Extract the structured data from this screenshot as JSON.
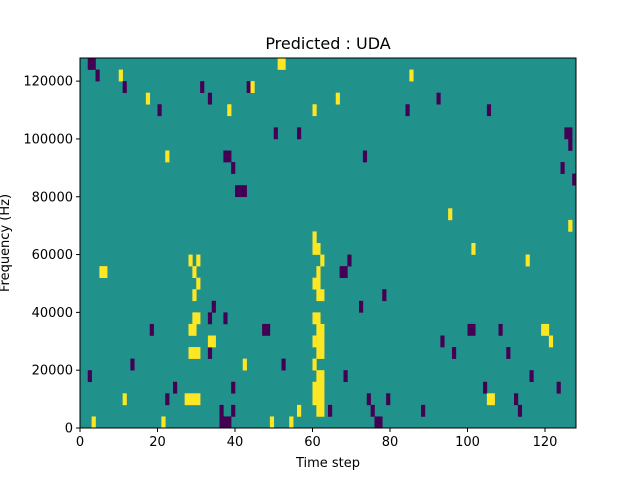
{
  "chart_data": {
    "type": "heatmap",
    "title": "Predicted : UDA",
    "xlabel": "Time step",
    "ylabel": "Frequency (Hz)",
    "xlim": [
      0,
      128
    ],
    "ylim": [
      0,
      128000
    ],
    "x_ticks": [
      0,
      20,
      40,
      60,
      80,
      100,
      120
    ],
    "x_tick_labels": [
      "0",
      "20",
      "40",
      "60",
      "80",
      "100",
      "120"
    ],
    "y_ticks": [
      0,
      20000,
      40000,
      60000,
      80000,
      100000,
      120000
    ],
    "y_tick_labels": [
      "0",
      "20000",
      "40000",
      "60000",
      "80000",
      "100000",
      "120000"
    ],
    "grid": false,
    "colormap": "viridis",
    "colors": {
      "background": "#21918c",
      "low": "#440154",
      "high": "#fde725"
    },
    "cell_width_steps": 1,
    "cell_height_hz": 4000,
    "high_cells": [
      [
        27,
        8000
      ],
      [
        28,
        8000
      ],
      [
        29,
        8000
      ],
      [
        30,
        8000
      ],
      [
        28,
        24000
      ],
      [
        29,
        24000
      ],
      [
        30,
        24000
      ],
      [
        28,
        32000
      ],
      [
        29,
        32000
      ],
      [
        29,
        36000
      ],
      [
        30,
        36000
      ],
      [
        29,
        44000
      ],
      [
        30,
        48000
      ],
      [
        29,
        52000
      ],
      [
        30,
        56000
      ],
      [
        28,
        56000
      ],
      [
        61,
        4000
      ],
      [
        62,
        4000
      ],
      [
        60,
        8000
      ],
      [
        61,
        8000
      ],
      [
        62,
        8000
      ],
      [
        60,
        12000
      ],
      [
        61,
        12000
      ],
      [
        62,
        12000
      ],
      [
        61,
        16000
      ],
      [
        62,
        16000
      ],
      [
        60,
        20000
      ],
      [
        61,
        24000
      ],
      [
        62,
        24000
      ],
      [
        60,
        28000
      ],
      [
        61,
        28000
      ],
      [
        62,
        28000
      ],
      [
        61,
        32000
      ],
      [
        62,
        32000
      ],
      [
        60,
        36000
      ],
      [
        61,
        36000
      ],
      [
        61,
        44000
      ],
      [
        62,
        44000
      ],
      [
        60,
        48000
      ],
      [
        61,
        48000
      ],
      [
        61,
        52000
      ],
      [
        62,
        56000
      ],
      [
        60,
        60000
      ],
      [
        61,
        60000
      ],
      [
        60,
        64000
      ],
      [
        5,
        52000
      ],
      [
        6,
        52000
      ],
      [
        11,
        8000
      ],
      [
        21,
        0
      ],
      [
        33,
        28000
      ],
      [
        34,
        28000
      ],
      [
        42,
        20000
      ],
      [
        49,
        0
      ],
      [
        54,
        0
      ],
      [
        56,
        4000
      ],
      [
        3,
        0
      ],
      [
        10,
        120000
      ],
      [
        17,
        112000
      ],
      [
        22,
        92000
      ],
      [
        38,
        108000
      ],
      [
        44,
        116000
      ],
      [
        51,
        124000
      ],
      [
        52,
        124000
      ],
      [
        60,
        108000
      ],
      [
        66,
        112000
      ],
      [
        85,
        120000
      ],
      [
        95,
        72000
      ],
      [
        101,
        60000
      ],
      [
        105,
        8000
      ],
      [
        106,
        8000
      ],
      [
        115,
        56000
      ],
      [
        119,
        32000
      ],
      [
        120,
        32000
      ],
      [
        121,
        28000
      ],
      [
        126,
        68000
      ]
    ],
    "low_cells": [
      [
        36,
        0
      ],
      [
        37,
        0
      ],
      [
        38,
        0
      ],
      [
        36,
        4000
      ],
      [
        39,
        4000
      ],
      [
        37,
        92000
      ],
      [
        38,
        92000
      ],
      [
        39,
        88000
      ],
      [
        40,
        80000
      ],
      [
        41,
        80000
      ],
      [
        42,
        80000
      ],
      [
        37,
        36000
      ],
      [
        33,
        24000
      ],
      [
        33,
        36000
      ],
      [
        34,
        40000
      ],
      [
        47,
        32000
      ],
      [
        48,
        32000
      ],
      [
        67,
        52000
      ],
      [
        68,
        52000
      ],
      [
        69,
        56000
      ],
      [
        74,
        8000
      ],
      [
        75,
        4000
      ],
      [
        76,
        0
      ],
      [
        77,
        0
      ],
      [
        79,
        8000
      ],
      [
        96,
        24000
      ],
      [
        100,
        32000
      ],
      [
        101,
        32000
      ],
      [
        112,
        8000
      ],
      [
        113,
        4000
      ],
      [
        125,
        100000
      ],
      [
        126,
        100000
      ],
      [
        126,
        96000
      ],
      [
        2,
        124000
      ],
      [
        3,
        124000
      ],
      [
        4,
        120000
      ],
      [
        11,
        116000
      ],
      [
        20,
        108000
      ],
      [
        31,
        116000
      ],
      [
        33,
        112000
      ],
      [
        43,
        116000
      ],
      [
        50,
        100000
      ],
      [
        56,
        100000
      ],
      [
        73,
        92000
      ],
      [
        84,
        108000
      ],
      [
        92,
        112000
      ],
      [
        105,
        108000
      ],
      [
        108,
        32000
      ],
      [
        124,
        88000
      ],
      [
        127,
        84000
      ],
      [
        2,
        16000
      ],
      [
        13,
        20000
      ],
      [
        18,
        32000
      ],
      [
        22,
        8000
      ],
      [
        24,
        12000
      ],
      [
        39,
        12000
      ],
      [
        52,
        20000
      ],
      [
        64,
        4000
      ],
      [
        68,
        16000
      ],
      [
        72,
        40000
      ],
      [
        78,
        44000
      ],
      [
        88,
        4000
      ],
      [
        93,
        28000
      ],
      [
        104,
        12000
      ],
      [
        110,
        24000
      ],
      [
        116,
        16000
      ],
      [
        123,
        12000
      ]
    ]
  }
}
